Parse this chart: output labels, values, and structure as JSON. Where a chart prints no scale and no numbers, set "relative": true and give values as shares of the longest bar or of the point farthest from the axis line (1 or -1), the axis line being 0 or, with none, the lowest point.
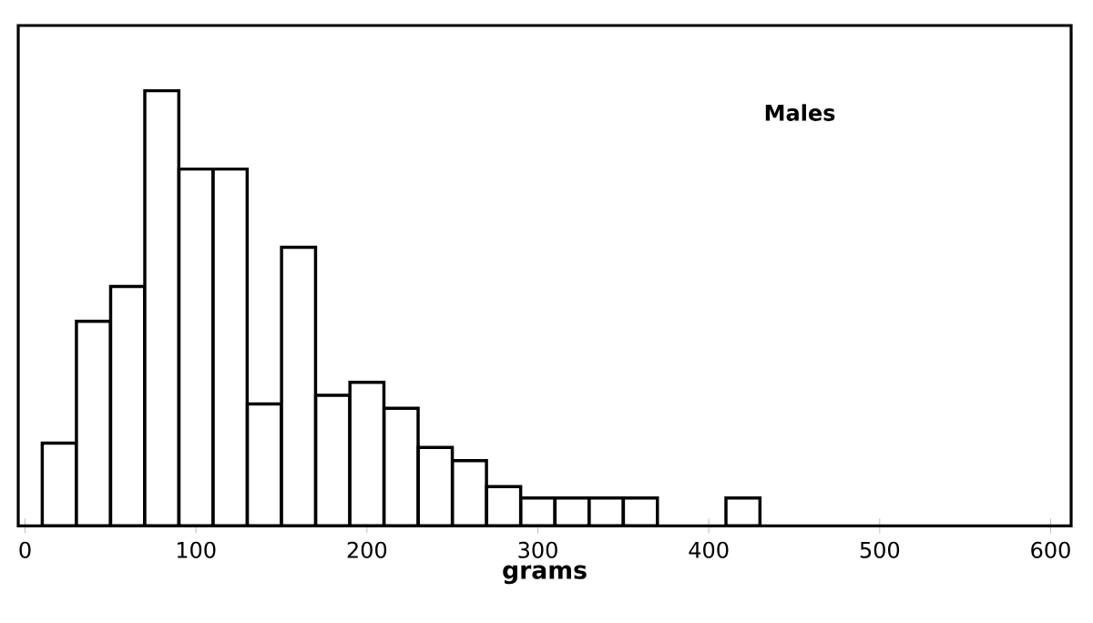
{
  "chart_data": {
    "type": "bar",
    "relative": true,
    "x": [
      20,
      40,
      60,
      80,
      100,
      120,
      140,
      160,
      180,
      200,
      220,
      240,
      260,
      280,
      300,
      320,
      340,
      360,
      420
    ],
    "values": [
      0.19,
      0.47,
      0.55,
      1,
      0.82,
      0.82,
      0.28,
      0.64,
      0.3,
      0.33,
      0.27,
      0.18,
      0.15,
      0.09,
      0.064,
      0.064,
      0.064,
      0.064,
      0.064
    ],
    "color": "#000000",
    "xlim": [
      -4,
      612
    ],
    "xticks": [
      0,
      100,
      200,
      300,
      400,
      500,
      600
    ],
    "xlabel": "grams",
    "annotations": [
      "Males"
    ]
  }
}
